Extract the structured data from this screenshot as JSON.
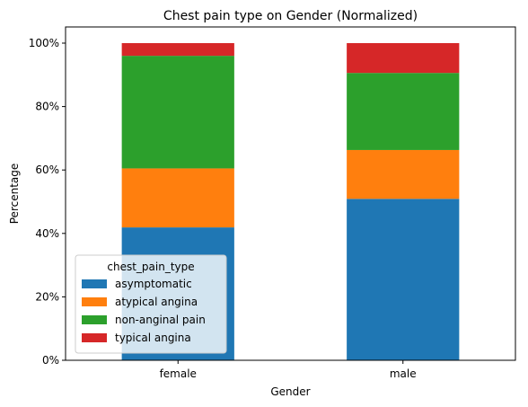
{
  "chart_data": {
    "type": "bar",
    "stacked": true,
    "title": "Chest pain type on Gender (Normalized)",
    "xlabel": "Gender",
    "ylabel": "Percentage",
    "categories": [
      "female",
      "male"
    ],
    "ylim": [
      0,
      100
    ],
    "yticks": [
      0,
      20,
      40,
      60,
      80,
      100
    ],
    "ytick_labels": [
      "0%",
      "20%",
      "40%",
      "60%",
      "80%",
      "100%"
    ],
    "legend": {
      "title": "chest_pain_type",
      "placement": "lower-left"
    },
    "grid": false,
    "series": [
      {
        "name": "asymptomatic",
        "color": "#1f77b4",
        "values": [
          41.9,
          50.9
        ]
      },
      {
        "name": "atypical angina",
        "color": "#ff7f0e",
        "values": [
          18.6,
          15.4
        ]
      },
      {
        "name": "non-anginal pain",
        "color": "#2ca02c",
        "values": [
          35.5,
          24.3
        ]
      },
      {
        "name": "typical angina",
        "color": "#d62728",
        "values": [
          4.0,
          9.4
        ]
      }
    ]
  }
}
